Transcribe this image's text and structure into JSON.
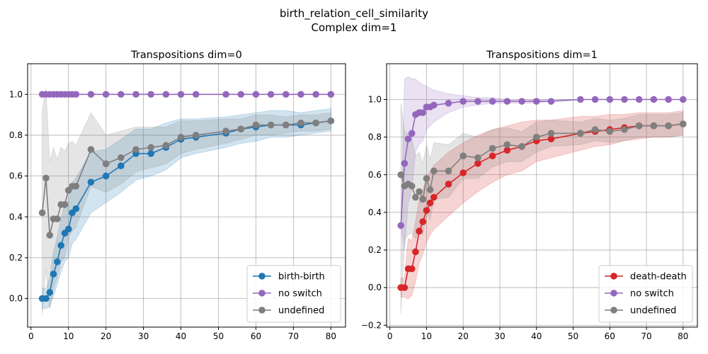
{
  "suptitle": "birth_relation_cell_similarity",
  "suptitle2": "Complex dim=1",
  "colors": {
    "blue": "#1f77b4",
    "purple": "#9467bd",
    "gray": "#7f7f7f",
    "red": "#d62728",
    "grid": "#b0b0b0"
  },
  "chart_data": [
    {
      "type": "line",
      "title": "Transpositions dim=0",
      "xlabel": "",
      "ylabel": "",
      "xlim": [
        -0.9,
        83.9
      ],
      "ylim": [
        -0.14,
        1.15
      ],
      "xticks": [
        0,
        10,
        20,
        30,
        40,
        50,
        60,
        70,
        80
      ],
      "yticks": [
        0.0,
        0.2,
        0.4,
        0.6,
        0.8,
        1.0
      ],
      "ytick_labels": [
        "0.0",
        "0.2",
        "0.4",
        "0.6",
        "0.8",
        "1.0"
      ],
      "grid": true,
      "legend_position": "lower-right",
      "series": [
        {
          "name": "birth-birth",
          "color": "#1f77b4",
          "x": [
            3,
            4,
            5,
            6,
            7,
            8,
            9,
            10,
            11,
            12,
            16,
            20,
            24,
            28,
            32,
            36,
            40,
            44,
            52,
            56,
            60,
            64,
            68,
            72,
            76,
            80
          ],
          "y": [
            0.0,
            0.0,
            0.03,
            0.12,
            0.18,
            0.26,
            0.32,
            0.34,
            0.42,
            0.44,
            0.57,
            0.6,
            0.65,
            0.71,
            0.71,
            0.74,
            0.78,
            0.79,
            0.81,
            0.83,
            0.84,
            0.85,
            0.85,
            0.85,
            0.86,
            0.87
          ],
          "lower": [
            -0.05,
            -0.05,
            -0.04,
            0.01,
            0.07,
            0.13,
            0.18,
            0.2,
            0.27,
            0.29,
            0.42,
            0.47,
            0.52,
            0.58,
            0.6,
            0.63,
            0.69,
            0.71,
            0.74,
            0.76,
            0.77,
            0.79,
            0.79,
            0.8,
            0.81,
            0.82
          ],
          "upper": [
            0.05,
            0.05,
            0.1,
            0.23,
            0.3,
            0.39,
            0.46,
            0.48,
            0.57,
            0.59,
            0.72,
            0.73,
            0.78,
            0.83,
            0.83,
            0.86,
            0.88,
            0.88,
            0.89,
            0.9,
            0.91,
            0.92,
            0.92,
            0.91,
            0.92,
            0.93
          ]
        },
        {
          "name": "no switch",
          "color": "#9467bd",
          "x": [
            3,
            4,
            5,
            6,
            7,
            8,
            9,
            10,
            11,
            12,
            16,
            20,
            24,
            28,
            32,
            36,
            40,
            44,
            52,
            56,
            60,
            64,
            68,
            72,
            76,
            80
          ],
          "y": [
            1.0,
            1.0,
            1.0,
            1.0,
            1.0,
            1.0,
            1.0,
            1.0,
            1.0,
            1.0,
            1.0,
            1.0,
            1.0,
            1.0,
            1.0,
            1.0,
            1.0,
            1.0,
            1.0,
            1.0,
            1.0,
            1.0,
            1.0,
            1.0,
            1.0,
            1.0
          ],
          "lower": [
            1.0,
            1.0,
            1.0,
            1.0,
            1.0,
            1.0,
            1.0,
            1.0,
            1.0,
            1.0,
            1.0,
            1.0,
            1.0,
            1.0,
            1.0,
            1.0,
            1.0,
            1.0,
            1.0,
            1.0,
            1.0,
            1.0,
            1.0,
            1.0,
            1.0,
            1.0
          ],
          "upper": [
            1.0,
            1.0,
            1.0,
            1.0,
            1.0,
            1.0,
            1.0,
            1.0,
            1.0,
            1.0,
            1.0,
            1.0,
            1.0,
            1.0,
            1.0,
            1.0,
            1.0,
            1.0,
            1.0,
            1.0,
            1.0,
            1.0,
            1.0,
            1.0,
            1.0,
            1.0
          ]
        },
        {
          "name": "undefined",
          "color": "#7f7f7f",
          "x": [
            3,
            4,
            5,
            6,
            7,
            8,
            9,
            10,
            11,
            12,
            16,
            20,
            24,
            28,
            32,
            36,
            40,
            44,
            52,
            56,
            60,
            64,
            68,
            72,
            76,
            80
          ],
          "y": [
            0.42,
            0.59,
            0.31,
            0.39,
            0.39,
            0.46,
            0.46,
            0.53,
            0.55,
            0.55,
            0.73,
            0.66,
            0.69,
            0.73,
            0.74,
            0.75,
            0.79,
            0.8,
            0.82,
            0.83,
            0.85,
            0.85,
            0.85,
            0.86,
            0.86,
            0.87
          ],
          "lower": [
            -0.08,
            0.15,
            -0.05,
            0.05,
            0.1,
            0.18,
            0.2,
            0.3,
            0.33,
            0.35,
            0.55,
            0.52,
            0.56,
            0.62,
            0.64,
            0.66,
            0.71,
            0.73,
            0.76,
            0.78,
            0.8,
            0.8,
            0.81,
            0.82,
            0.82,
            0.83
          ],
          "upper": [
            0.92,
            1.03,
            0.67,
            0.74,
            0.68,
            0.74,
            0.72,
            0.76,
            0.77,
            0.75,
            0.91,
            0.8,
            0.82,
            0.84,
            0.84,
            0.84,
            0.87,
            0.87,
            0.88,
            0.88,
            0.9,
            0.9,
            0.89,
            0.9,
            0.9,
            0.91
          ]
        }
      ]
    },
    {
      "type": "line",
      "title": "Transpositions dim=1",
      "xlabel": "",
      "ylabel": "",
      "xlim": [
        -0.9,
        83.9
      ],
      "ylim": [
        -0.21,
        1.19
      ],
      "xticks": [
        0,
        10,
        20,
        30,
        40,
        50,
        60,
        70,
        80
      ],
      "yticks": [
        -0.2,
        0.0,
        0.2,
        0.4,
        0.6,
        0.8,
        1.0
      ],
      "ytick_labels": [
        "−0.2",
        "0.0",
        "0.2",
        "0.4",
        "0.6",
        "0.8",
        "1.0"
      ],
      "grid": true,
      "legend_position": "lower-right",
      "series": [
        {
          "name": "death-death",
          "color": "#d62728",
          "x": [
            3,
            4,
            5,
            6,
            7,
            8,
            9,
            10,
            11,
            12,
            16,
            20,
            24,
            28,
            32,
            36,
            40,
            44,
            52,
            56,
            60,
            64,
            68,
            72,
            76,
            80
          ],
          "y": [
            0.0,
            0.0,
            0.1,
            0.1,
            0.19,
            0.3,
            0.35,
            0.41,
            0.45,
            0.48,
            0.55,
            0.61,
            0.66,
            0.7,
            0.73,
            0.75,
            0.78,
            0.79,
            0.82,
            0.83,
            0.84,
            0.85,
            0.86,
            0.86,
            0.86,
            0.87
          ],
          "lower": [
            -0.05,
            -0.05,
            -0.06,
            -0.04,
            0.03,
            0.13,
            0.18,
            0.24,
            0.28,
            0.31,
            0.38,
            0.45,
            0.51,
            0.56,
            0.6,
            0.62,
            0.67,
            0.69,
            0.73,
            0.75,
            0.76,
            0.78,
            0.79,
            0.8,
            0.8,
            0.81
          ],
          "upper": [
            0.05,
            0.05,
            0.26,
            0.25,
            0.35,
            0.47,
            0.52,
            0.58,
            0.62,
            0.65,
            0.72,
            0.77,
            0.81,
            0.84,
            0.86,
            0.88,
            0.89,
            0.89,
            0.91,
            0.91,
            0.92,
            0.92,
            0.93,
            0.93,
            0.93,
            0.94
          ]
        },
        {
          "name": "no switch",
          "color": "#9467bd",
          "x": [
            3,
            4,
            5,
            6,
            7,
            8,
            9,
            10,
            11,
            12,
            16,
            20,
            24,
            28,
            32,
            36,
            40,
            44,
            52,
            56,
            60,
            64,
            68,
            72,
            76,
            80
          ],
          "y": [
            0.33,
            0.66,
            0.79,
            0.82,
            0.92,
            0.93,
            0.93,
            0.96,
            0.96,
            0.97,
            0.98,
            0.99,
            0.99,
            0.99,
            0.99,
            0.99,
            0.99,
            0.99,
            1.0,
            1.0,
            1.0,
            1.0,
            1.0,
            1.0,
            1.0,
            1.0
          ],
          "lower": [
            0.33,
            0.2,
            0.45,
            0.52,
            0.72,
            0.76,
            0.78,
            0.84,
            0.86,
            0.88,
            0.93,
            0.96,
            0.97,
            0.98,
            0.98,
            0.98,
            0.98,
            0.99,
            1.0,
            1.0,
            1.0,
            1.0,
            1.0,
            1.0,
            1.0,
            1.0
          ],
          "upper": [
            0.33,
            1.11,
            1.12,
            1.11,
            1.11,
            1.09,
            1.08,
            1.07,
            1.06,
            1.05,
            1.03,
            1.02,
            1.01,
            1.01,
            1.0,
            1.0,
            1.0,
            1.0,
            1.0,
            1.0,
            1.0,
            1.0,
            1.0,
            1.0,
            1.0,
            1.0
          ]
        },
        {
          "name": "undefined",
          "color": "#7f7f7f",
          "x": [
            3,
            4,
            5,
            6,
            7,
            8,
            9,
            10,
            11,
            12,
            16,
            20,
            24,
            28,
            32,
            36,
            40,
            44,
            52,
            56,
            60,
            64,
            68,
            72,
            76,
            80
          ],
          "y": [
            0.6,
            0.54,
            0.55,
            0.54,
            0.48,
            0.51,
            0.47,
            0.58,
            0.52,
            0.62,
            0.62,
            0.7,
            0.69,
            0.74,
            0.76,
            0.75,
            0.8,
            0.82,
            0.82,
            0.84,
            0.83,
            0.84,
            0.86,
            0.86,
            0.86,
            0.87
          ],
          "lower": [
            -0.14,
            0.25,
            0.28,
            0.29,
            0.26,
            0.3,
            0.28,
            0.4,
            0.36,
            0.47,
            0.48,
            0.58,
            0.58,
            0.64,
            0.67,
            0.67,
            0.72,
            0.75,
            0.76,
            0.78,
            0.77,
            0.78,
            0.8,
            0.8,
            0.8,
            0.81
          ],
          "upper": [
            0.98,
            0.83,
            0.82,
            0.79,
            0.7,
            0.72,
            0.66,
            0.76,
            0.68,
            0.77,
            0.76,
            0.82,
            0.8,
            0.84,
            0.85,
            0.83,
            0.88,
            0.89,
            0.88,
            0.9,
            0.89,
            0.9,
            0.92,
            0.92,
            0.92,
            0.93
          ]
        }
      ]
    }
  ]
}
